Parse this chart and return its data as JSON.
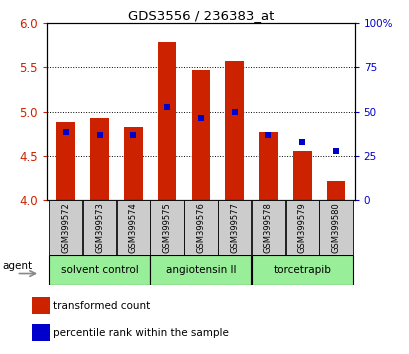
{
  "title": "GDS3556 / 236383_at",
  "categories": [
    "GSM399572",
    "GSM399573",
    "GSM399574",
    "GSM399575",
    "GSM399576",
    "GSM399577",
    "GSM399578",
    "GSM399579",
    "GSM399580"
  ],
  "red_values": [
    4.88,
    4.93,
    4.83,
    5.78,
    5.47,
    5.57,
    4.77,
    4.55,
    4.22
  ],
  "blue_values": [
    4.77,
    4.73,
    4.73,
    5.05,
    4.93,
    5.0,
    4.73,
    4.65,
    4.55
  ],
  "ylim_left": [
    4.0,
    6.0
  ],
  "ylim_right": [
    0,
    100
  ],
  "y_ticks_left": [
    4.0,
    4.5,
    5.0,
    5.5,
    6.0
  ],
  "y_ticks_right": [
    0,
    25,
    50,
    75,
    100
  ],
  "y_tick_labels_right": [
    "0",
    "25",
    "50",
    "75",
    "100%"
  ],
  "bar_color": "#cc2200",
  "blue_color": "#0000cc",
  "bar_width": 0.55,
  "groups": [
    {
      "label": "solvent control",
      "indices": [
        0,
        1,
        2
      ]
    },
    {
      "label": "angiotensin II",
      "indices": [
        3,
        4,
        5
      ]
    },
    {
      "label": "torcetrapib",
      "indices": [
        6,
        7,
        8
      ]
    }
  ],
  "group_color": "#99ee99",
  "agent_label": "agent",
  "legend_red": "transformed count",
  "legend_blue": "percentile rank within the sample",
  "tick_label_bg": "#cccccc",
  "left_tick_color": "#cc2200",
  "right_tick_color": "#0000cc"
}
